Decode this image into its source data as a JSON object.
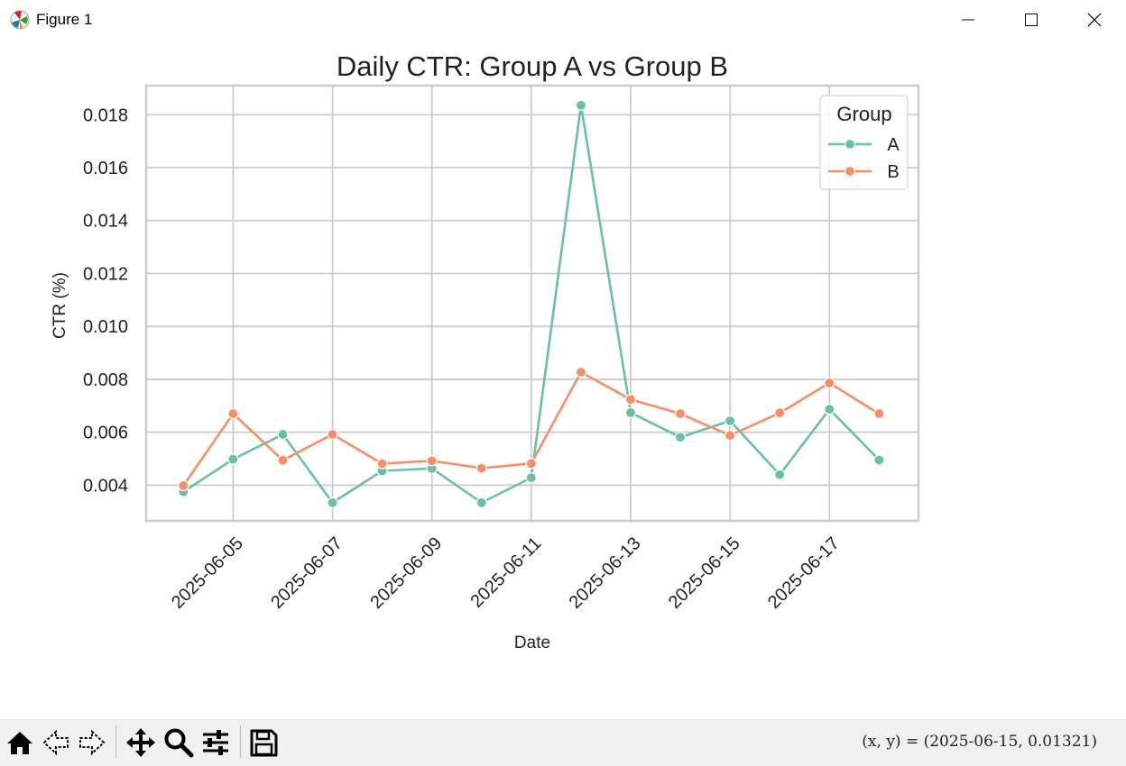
{
  "window": {
    "title": "Figure 1",
    "icons": [
      "matplotlib-icon",
      "minimize-icon",
      "maximize-icon",
      "close-icon"
    ]
  },
  "toolbar": {
    "buttons": [
      "home-icon",
      "back-icon",
      "forward-icon",
      "pan-icon",
      "zoom-icon",
      "configure-subplots-icon",
      "save-icon"
    ],
    "coords_text": "(x, y) = (2025-06-15, 0.01321)"
  },
  "chart_data": {
    "type": "line",
    "title": "Daily CTR: Group A vs Group B",
    "xlabel": "Date",
    "ylabel": "CTR (%)",
    "x": [
      "2025-06-04",
      "2025-06-05",
      "2025-06-06",
      "2025-06-07",
      "2025-06-08",
      "2025-06-09",
      "2025-06-10",
      "2025-06-11",
      "2025-06-12",
      "2025-06-13",
      "2025-06-14",
      "2025-06-15",
      "2025-06-16",
      "2025-06-17",
      "2025-06-18"
    ],
    "xticks": [
      "2025-06-05",
      "2025-06-07",
      "2025-06-09",
      "2025-06-11",
      "2025-06-13",
      "2025-06-15",
      "2025-06-17"
    ],
    "xlim": [
      "2025-06-03T06:00",
      "2025-06-18T19:00"
    ],
    "ylim": [
      0.00265,
      0.0191
    ],
    "yticks": [
      "0.004",
      "0.006",
      "0.008",
      "0.010",
      "0.012",
      "0.014",
      "0.016",
      "0.018"
    ],
    "yticks_values": [
      0.004,
      0.006,
      0.008,
      0.01,
      0.012,
      0.014,
      0.016,
      0.018
    ],
    "grid": true,
    "legend": {
      "title": "Group",
      "placement": "top-right"
    },
    "series": [
      {
        "name": "A",
        "color": "#66c2a5",
        "values": [
          0.00375,
          0.00498,
          0.00592,
          0.00334,
          0.00454,
          0.00463,
          0.00334,
          0.00428,
          0.01836,
          0.00674,
          0.00581,
          0.00643,
          0.0044,
          0.00687,
          0.00495
        ]
      },
      {
        "name": "B",
        "color": "#fc8d62",
        "values": [
          0.00398,
          0.0067,
          0.00494,
          0.00592,
          0.00481,
          0.00492,
          0.00464,
          0.00482,
          0.00827,
          0.00724,
          0.0067,
          0.00588,
          0.00673,
          0.00786,
          0.0067
        ]
      }
    ]
  }
}
